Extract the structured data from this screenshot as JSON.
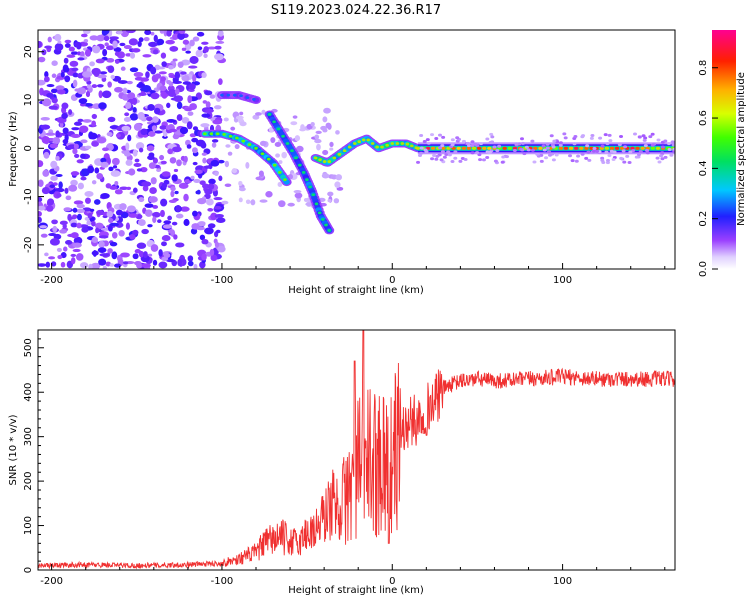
{
  "figure": {
    "title": "S119.2023.024.22.36.R17"
  },
  "chart_data": [
    {
      "type": "heatmap",
      "title": "",
      "xlabel": "Height of straight line (km)",
      "ylabel": "Frequency (Hz)",
      "xlim": [
        -208,
        166
      ],
      "ylim": [
        -25,
        24.5
      ],
      "x_ticks": [
        -200,
        -100,
        0,
        100
      ],
      "y_ticks": [
        -20,
        -10,
        0,
        10,
        20
      ],
      "grid": false,
      "colorbar": {
        "label": "Normalized spectral amplitude",
        "range": [
          0.0,
          0.95
        ],
        "ticks": [
          0.0,
          0.2,
          0.4,
          0.6,
          0.8
        ],
        "colormap": "rainbow"
      },
      "features": [
        {
          "name": "noise region",
          "x_range": [
            -208,
            -100
          ],
          "f_range": [
            -25,
            24.5
          ],
          "amplitude": 0.2
        },
        {
          "name": "upper branch",
          "points": [
            [
              -100,
              11
            ],
            [
              -90,
              11
            ],
            [
              -80,
              10
            ]
          ],
          "amplitude": 0.25
        },
        {
          "name": "main branch",
          "points": [
            [
              -110,
              3
            ],
            [
              -100,
              3
            ],
            [
              -90,
              2
            ],
            [
              -80,
              0
            ],
            [
              -70,
              -3
            ],
            [
              -62,
              -7
            ]
          ],
          "amplitude": 0.55
        },
        {
          "name": "steep branch",
          "points": [
            [
              -72,
              7
            ],
            [
              -65,
              3
            ],
            [
              -58,
              -1
            ],
            [
              -52,
              -5
            ],
            [
              -47,
              -9
            ],
            [
              -42,
              -14
            ],
            [
              -37,
              -17
            ]
          ],
          "amplitude": 0.45
        },
        {
          "name": "wiggle",
          "points": [
            [
              -45,
              -2
            ],
            [
              -38,
              -3
            ],
            [
              -30,
              -1
            ],
            [
              -22,
              1
            ],
            [
              -15,
              2
            ],
            [
              -8,
              0
            ],
            [
              0,
              1
            ],
            [
              8,
              1
            ],
            [
              15,
              0
            ]
          ],
          "amplitude": 0.6
        },
        {
          "name": "carrier line",
          "x_range": [
            15,
            166
          ],
          "frequency": 0,
          "amplitude": 0.85
        }
      ]
    },
    {
      "type": "line",
      "title": "",
      "xlabel": "Height of straight line (km)",
      "ylabel": "SNR (10 * v/v)",
      "xlim": [
        -208,
        166
      ],
      "ylim": [
        0,
        540
      ],
      "x_ticks": [
        -200,
        -100,
        0,
        100
      ],
      "y_ticks": [
        0,
        100,
        200,
        300,
        400,
        500
      ],
      "grid": false,
      "series": [
        {
          "color": "#f03030",
          "x": [
            -208,
            -180,
            -150,
            -120,
            -100,
            -90,
            -80,
            -75,
            -70,
            -65,
            -60,
            -55,
            -50,
            -45,
            -40,
            -35,
            -30,
            -25,
            -20,
            -15,
            -10,
            -5,
            0,
            5,
            10,
            15,
            20,
            25,
            30,
            40,
            50,
            60,
            80,
            100,
            120,
            140,
            166
          ],
          "y": [
            10,
            12,
            10,
            12,
            15,
            25,
            40,
            60,
            70,
            75,
            65,
            60,
            85,
            90,
            120,
            150,
            140,
            180,
            230,
            250,
            240,
            260,
            240,
            310,
            330,
            340,
            360,
            380,
            410,
            425,
            430,
            425,
            430,
            435,
            430,
            430,
            430
          ]
        }
      ]
    }
  ]
}
